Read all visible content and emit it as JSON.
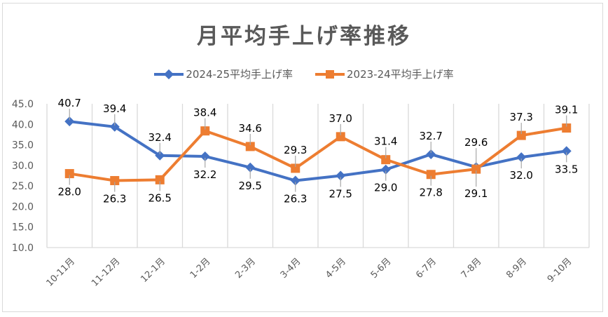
{
  "chart_data": {
    "type": "line",
    "title": "月平均手上げ率推移",
    "xlabel": "",
    "ylabel": "",
    "categories": [
      "10-11月",
      "11-12月",
      "12-1月",
      "1-2月",
      "2-3月",
      "3-4月",
      "4-5月",
      "5-6月",
      "6-7月",
      "7-8月",
      "8-9月",
      "9-10月"
    ],
    "ylim": [
      10.0,
      45.0
    ],
    "yticks": [
      "10.0",
      "15.0",
      "20.0",
      "25.0",
      "30.0",
      "35.0",
      "40.0",
      "45.0"
    ],
    "grid": "vertical category dividers",
    "legend_position": "top",
    "series": [
      {
        "name": "2024-25平均手上げ率",
        "color": "#4472C4",
        "marker": "diamond",
        "values": [
          40.7,
          39.4,
          32.4,
          32.2,
          29.5,
          26.3,
          27.5,
          29.0,
          32.7,
          29.6,
          32.0,
          33.5
        ],
        "labels": [
          "40.7",
          "39.4",
          "32.4",
          "32.2",
          "29.5",
          "26.3",
          "27.5",
          "29.0",
          "32.7",
          "29.6",
          "32.0",
          "33.5"
        ],
        "label_positions": [
          "above",
          "above",
          "above",
          "below",
          "below",
          "below",
          "below",
          "below",
          "above",
          "above-far",
          "below",
          "below"
        ]
      },
      {
        "name": "2023-24平均手上げ率",
        "color": "#ED7D31",
        "marker": "square",
        "values": [
          28.0,
          26.3,
          26.5,
          38.4,
          34.6,
          29.3,
          37.0,
          31.4,
          27.8,
          29.1,
          37.3,
          39.1
        ],
        "labels": [
          "28.0",
          "26.3",
          "26.5",
          "38.4",
          "34.6",
          "29.3",
          "37.0",
          "31.4",
          "27.8",
          "29.1",
          "37.3",
          "39.1"
        ],
        "label_positions": [
          "below",
          "below",
          "below",
          "above",
          "above",
          "above",
          "above",
          "above",
          "below",
          "below-far",
          "above",
          "above"
        ]
      }
    ]
  },
  "colors": {
    "grid": "#D9D9D9",
    "leader": "#A6A6A6"
  }
}
